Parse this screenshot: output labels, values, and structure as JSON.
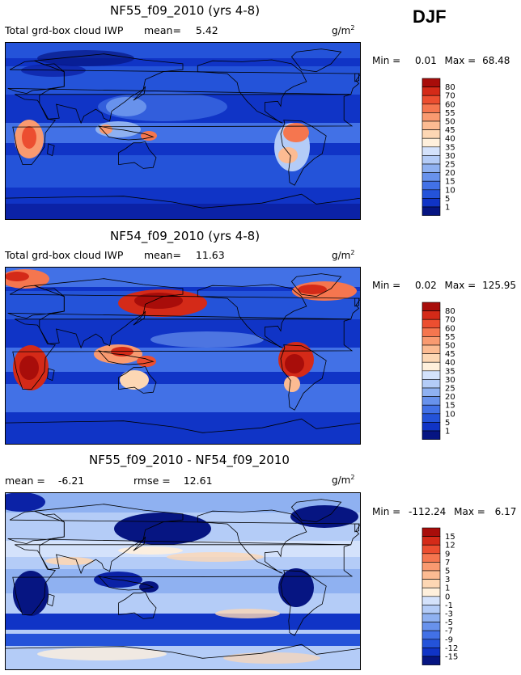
{
  "season": "DJF",
  "palette_warm": [
    "#fff0dc",
    "#fdd7b4",
    "#fcbb92",
    "#f99a70",
    "#f5764f",
    "#ec4e30",
    "#d42a18",
    "#a80d0a"
  ],
  "palette_cool": [
    "#f4f8ff",
    "#d4e2fb",
    "#b4ccf7",
    "#8fb1f1",
    "#6892ec",
    "#4271e6",
    "#2453d9",
    "#1034c6",
    "#0b22a6",
    "#061582"
  ],
  "chart_data": [
    {
      "type": "heatmap",
      "title": "NF55_f09_2010 (yrs 4-8)",
      "subtitle": "Total grd-box cloud IWP",
      "mean_label": "mean=",
      "mean_value": "5.42",
      "units": "g/m",
      "units_exp": "2",
      "min_label": "Min =",
      "min_value": "0.01",
      "max_label": "Max =",
      "max_value": "68.48",
      "colorbar_levels": [
        "80",
        "70",
        "60",
        "55",
        "50",
        "45",
        "40",
        "35",
        "30",
        "25",
        "20",
        "15",
        "10",
        "5",
        "1"
      ]
    },
    {
      "type": "heatmap",
      "title": "NF54_f09_2010 (yrs 4-8)",
      "subtitle": "Total grd-box cloud IWP",
      "mean_label": "mean=",
      "mean_value": "11.63",
      "units": "g/m",
      "units_exp": "2",
      "min_label": "Min =",
      "min_value": "0.02",
      "max_label": "Max =",
      "max_value": "125.95",
      "colorbar_levels": [
        "80",
        "70",
        "60",
        "55",
        "50",
        "45",
        "40",
        "35",
        "30",
        "25",
        "20",
        "15",
        "10",
        "5",
        "1"
      ]
    },
    {
      "type": "heatmap",
      "title": "NF55_f09_2010 - NF54_f09_2010",
      "mean_label": "mean =",
      "mean_value": "-6.21",
      "rmse_label": "rmse =",
      "rmse_value": "12.61",
      "units": "g/m",
      "units_exp": "2",
      "min_label": "Min =",
      "min_value": "-112.24",
      "max_label": "Max =",
      "max_value": "6.17",
      "colorbar_levels": [
        "15",
        "12",
        "9",
        "7",
        "5",
        "3",
        "1",
        "0",
        "-1",
        "-3",
        "-5",
        "-7",
        "-9",
        "-12",
        "-15"
      ]
    }
  ]
}
